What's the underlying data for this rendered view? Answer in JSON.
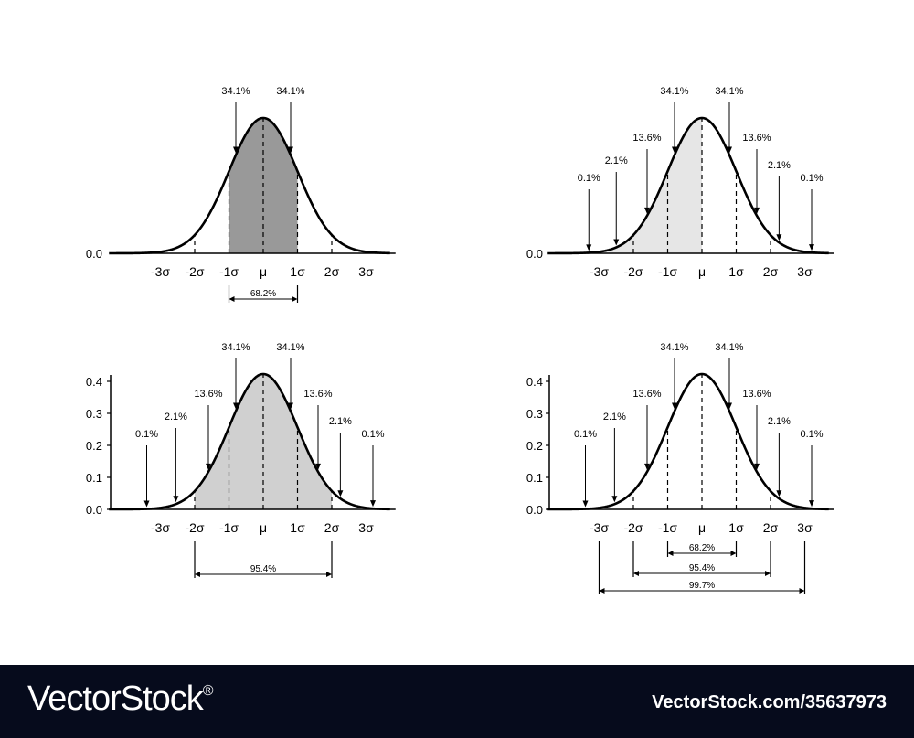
{
  "chart_data": [
    {
      "type": "area",
      "panel": "top-left",
      "curve": "normal",
      "x_categories": [
        "-3σ",
        "-2σ",
        "-1σ",
        "μ",
        "1σ",
        "2σ",
        "3σ"
      ],
      "ytick_labels": [
        "0.0"
      ],
      "shaded_range": [
        -1,
        1
      ],
      "shade_color": "#999999",
      "annotations": [
        {
          "label": "34.1%",
          "from_sd": -0.8
        },
        {
          "label": "34.1%",
          "from_sd": 0.8
        }
      ],
      "span_labels": [
        {
          "label": "68.2%",
          "range": [
            -1,
            1
          ]
        }
      ]
    },
    {
      "type": "area",
      "panel": "top-right",
      "curve": "normal",
      "x_categories": [
        "-3σ",
        "-2σ",
        "-1σ",
        "μ",
        "1σ",
        "2σ",
        "3σ"
      ],
      "ytick_labels": [
        "0.0"
      ],
      "shaded_range": [
        -3,
        0
      ],
      "shade_color": "#e6e6e6",
      "annotations": [
        {
          "label": "0.1%",
          "from_sd": -3.3
        },
        {
          "label": "2.1%",
          "from_sd": -2.5
        },
        {
          "label": "13.6%",
          "from_sd": -1.6
        },
        {
          "label": "34.1%",
          "from_sd": -0.8
        },
        {
          "label": "34.1%",
          "from_sd": 0.8
        },
        {
          "label": "13.6%",
          "from_sd": 1.6
        },
        {
          "label": "2.1%",
          "from_sd": 2.25
        },
        {
          "label": "0.1%",
          "from_sd": 3.2
        }
      ],
      "span_labels": []
    },
    {
      "type": "area",
      "panel": "bottom-left",
      "curve": "normal",
      "x_categories": [
        "-3σ",
        "-2σ",
        "-1σ",
        "μ",
        "1σ",
        "2σ",
        "3σ"
      ],
      "ytick_labels": [
        "0.0",
        "0.1",
        "0.2",
        "0.3",
        "0.4"
      ],
      "ylim": [
        0,
        0.4
      ],
      "shaded_range": [
        -2,
        2
      ],
      "shade_color": "#d0d0d0",
      "annotations": [
        {
          "label": "0.1%",
          "from_sd": -3.4
        },
        {
          "label": "2.1%",
          "from_sd": -2.55
        },
        {
          "label": "13.6%",
          "from_sd": -1.6
        },
        {
          "label": "34.1%",
          "from_sd": -0.8
        },
        {
          "label": "34.1%",
          "from_sd": 0.8
        },
        {
          "label": "13.6%",
          "from_sd": 1.6
        },
        {
          "label": "2.1%",
          "from_sd": 2.25
        },
        {
          "label": "0.1%",
          "from_sd": 3.2
        }
      ],
      "span_labels": [
        {
          "label": "95.4%",
          "range": [
            -2,
            2
          ]
        }
      ]
    },
    {
      "type": "line",
      "panel": "bottom-right",
      "curve": "normal",
      "x_categories": [
        "-3σ",
        "-2σ",
        "-1σ",
        "μ",
        "1σ",
        "2σ",
        "3σ"
      ],
      "ytick_labels": [
        "0.0",
        "0.1",
        "0.2",
        "0.3",
        "0.4"
      ],
      "ylim": [
        0,
        0.4
      ],
      "shaded_range": null,
      "shade_color": null,
      "annotations": [
        {
          "label": "0.1%",
          "from_sd": -3.4
        },
        {
          "label": "2.1%",
          "from_sd": -2.55
        },
        {
          "label": "13.6%",
          "from_sd": -1.6
        },
        {
          "label": "34.1%",
          "from_sd": -0.8
        },
        {
          "label": "34.1%",
          "from_sd": 0.8
        },
        {
          "label": "13.6%",
          "from_sd": 1.6
        },
        {
          "label": "2.1%",
          "from_sd": 2.25
        },
        {
          "label": "0.1%",
          "from_sd": 3.2
        }
      ],
      "span_labels": [
        {
          "label": "68.2%",
          "range": [
            -1,
            1
          ]
        },
        {
          "label": "95.4%",
          "range": [
            -2,
            2
          ]
        },
        {
          "label": "99.7%",
          "range": [
            -3,
            3
          ]
        }
      ]
    }
  ],
  "footer": {
    "brand": "VectorStock",
    "brand_mark": "®",
    "stock_id": "VectorStock.com/35637973"
  }
}
